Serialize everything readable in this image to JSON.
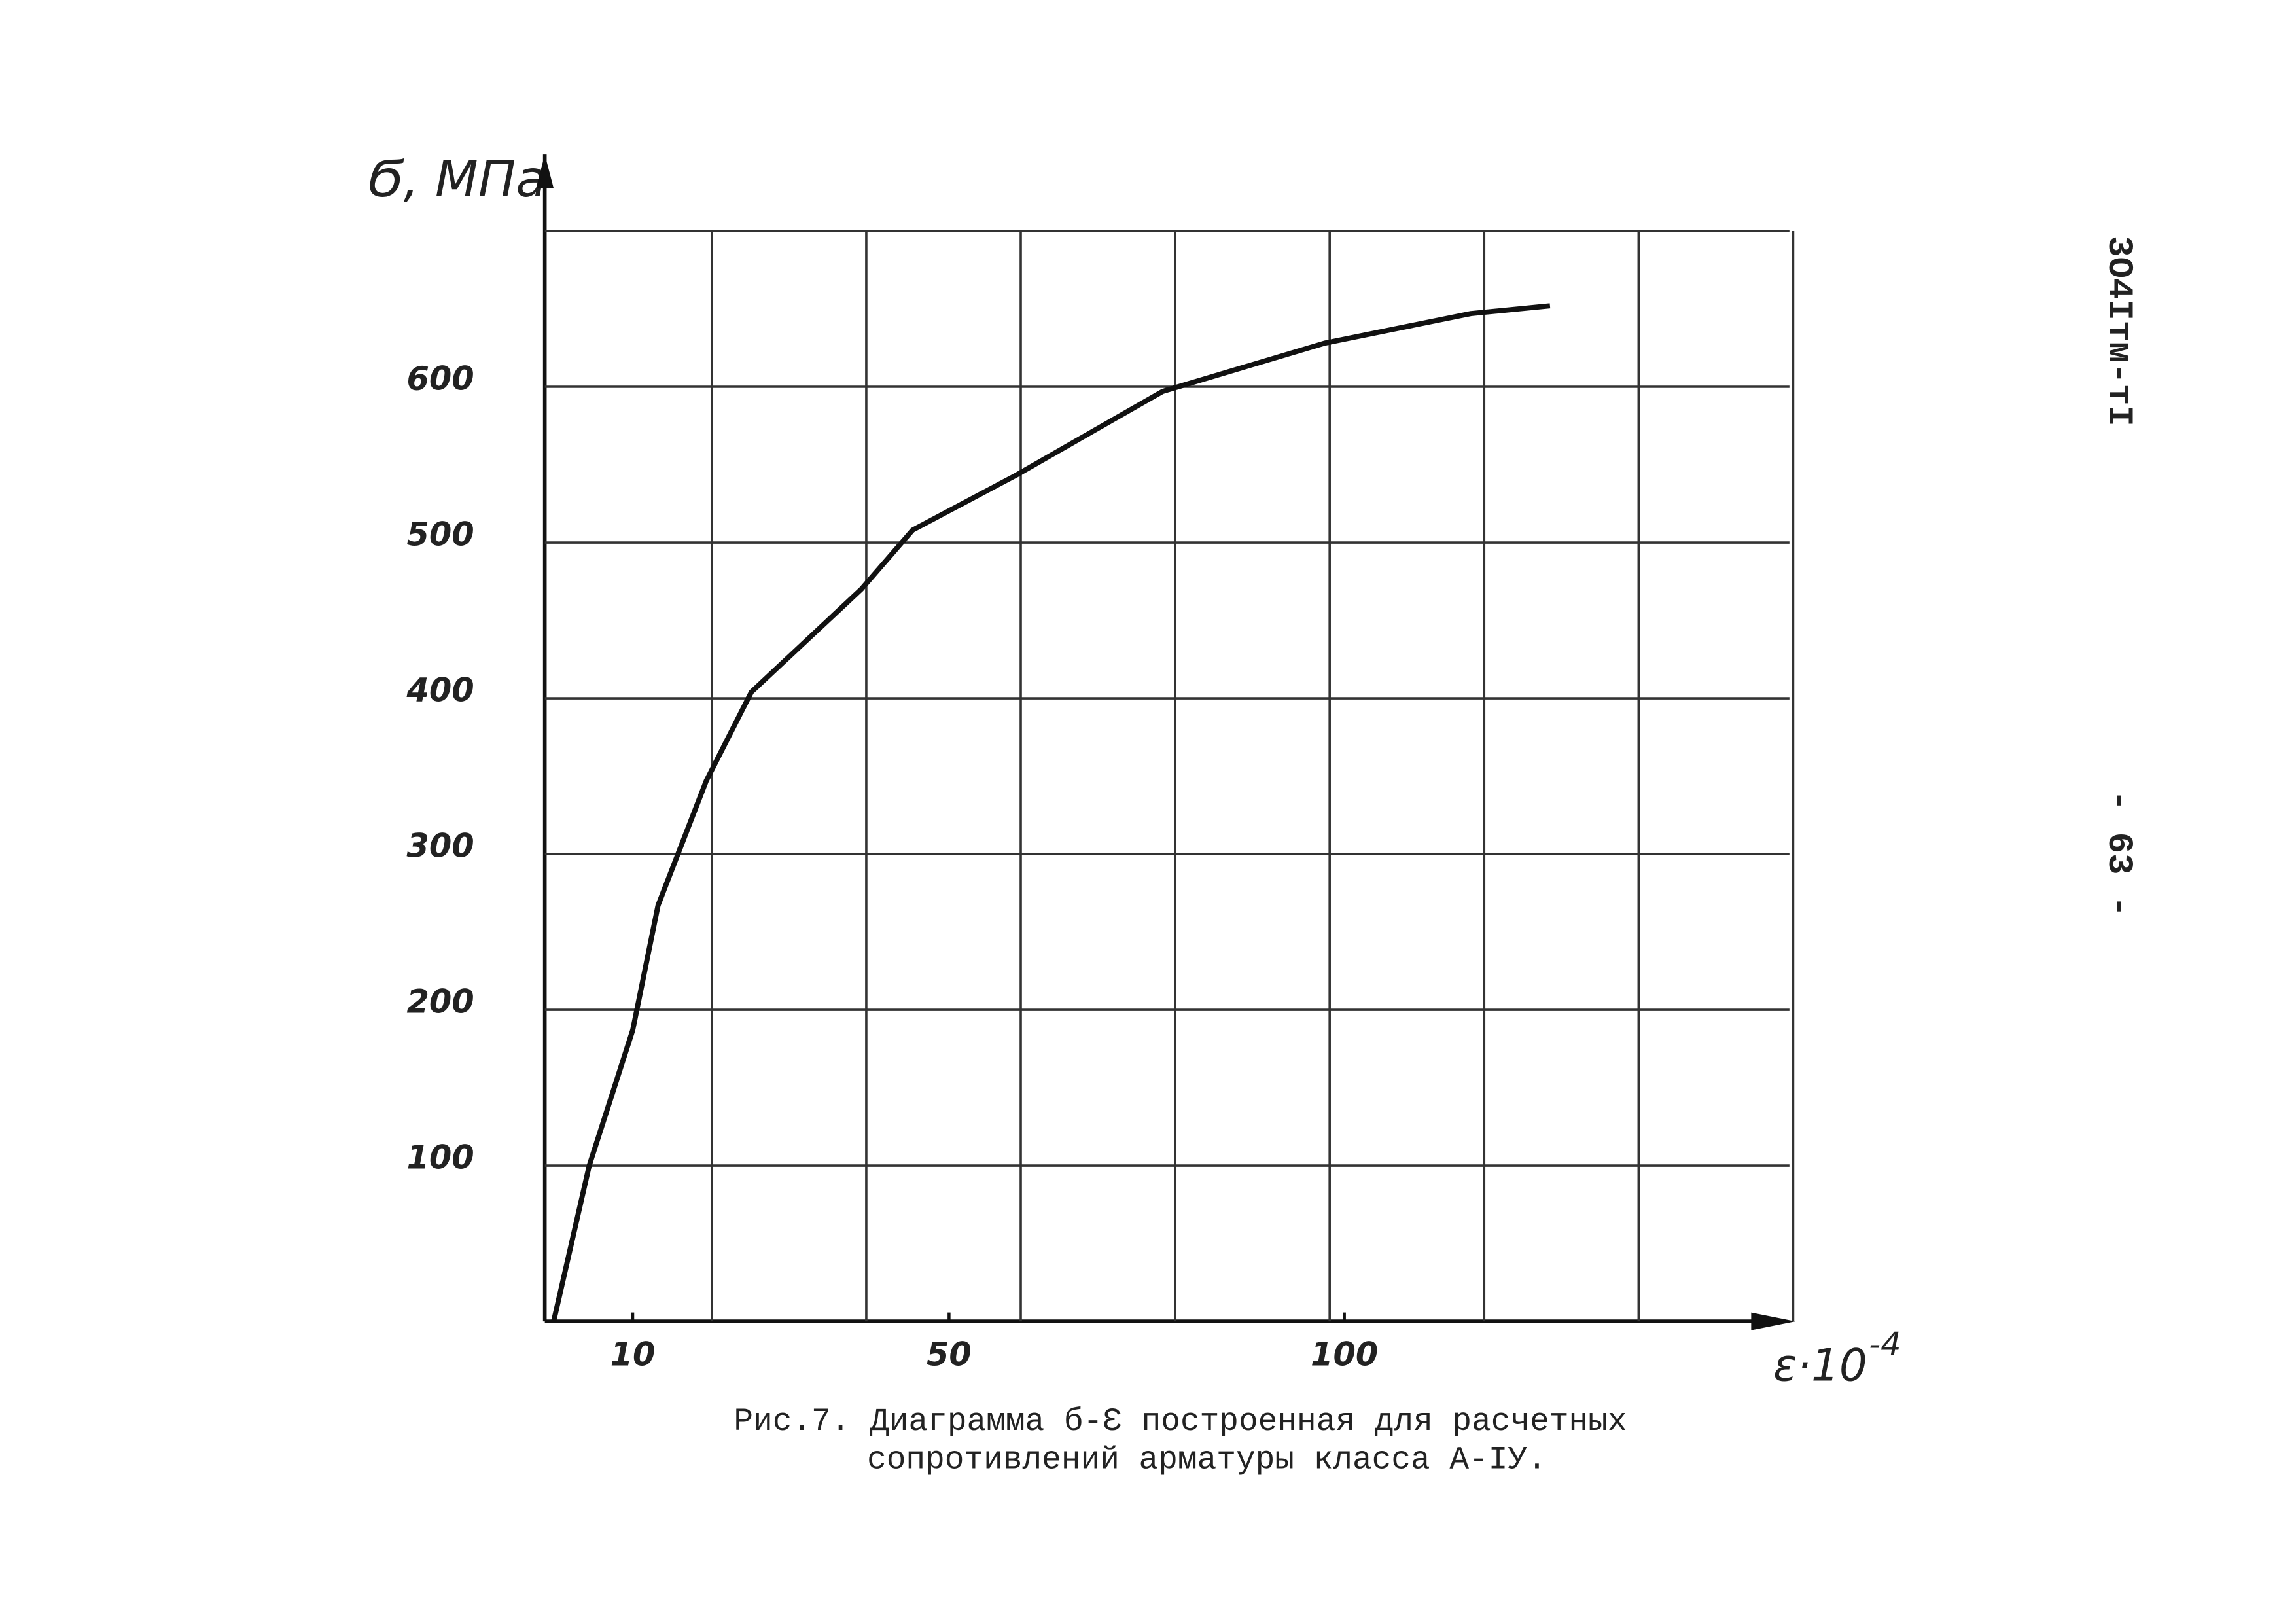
{
  "chart_data": {
    "type": "line",
    "y_label": "Ϭ, МПа",
    "x_label": "ε·10",
    "x_label_exponent": "-4",
    "caption": [
      "Рис.7. Диаграмма б-Ɛ построенная для расчетных",
      "сопротивлений арматуры класса А-IУ."
    ],
    "series": [
      {
        "name": "σ-ε",
        "color": "#111111",
        "x": [
          0,
          4.5,
          10,
          13.2,
          19.3,
          25,
          38.9,
          45.4,
          58.4,
          77,
          97.5,
          116,
          126
        ],
        "values": [
          0,
          100,
          187,
          267,
          347,
          404,
          470,
          508,
          543,
          597,
          628,
          647,
          652
        ]
      }
    ],
    "xlim": [
      0,
      160
    ],
    "xticks": [
      10,
      50,
      100
    ],
    "xgrid": [
      20,
      40,
      60,
      80,
      100,
      120,
      140,
      160
    ],
    "ylim": [
      0,
      700
    ],
    "yticks": [
      100,
      200,
      300,
      400,
      500,
      600
    ],
    "ygrid": [
      100,
      200,
      300,
      400,
      500,
      600,
      700
    ],
    "grid": true
  },
  "document": {
    "side_code": "3О4Iтм-тI",
    "page_number": "- 63 -"
  }
}
